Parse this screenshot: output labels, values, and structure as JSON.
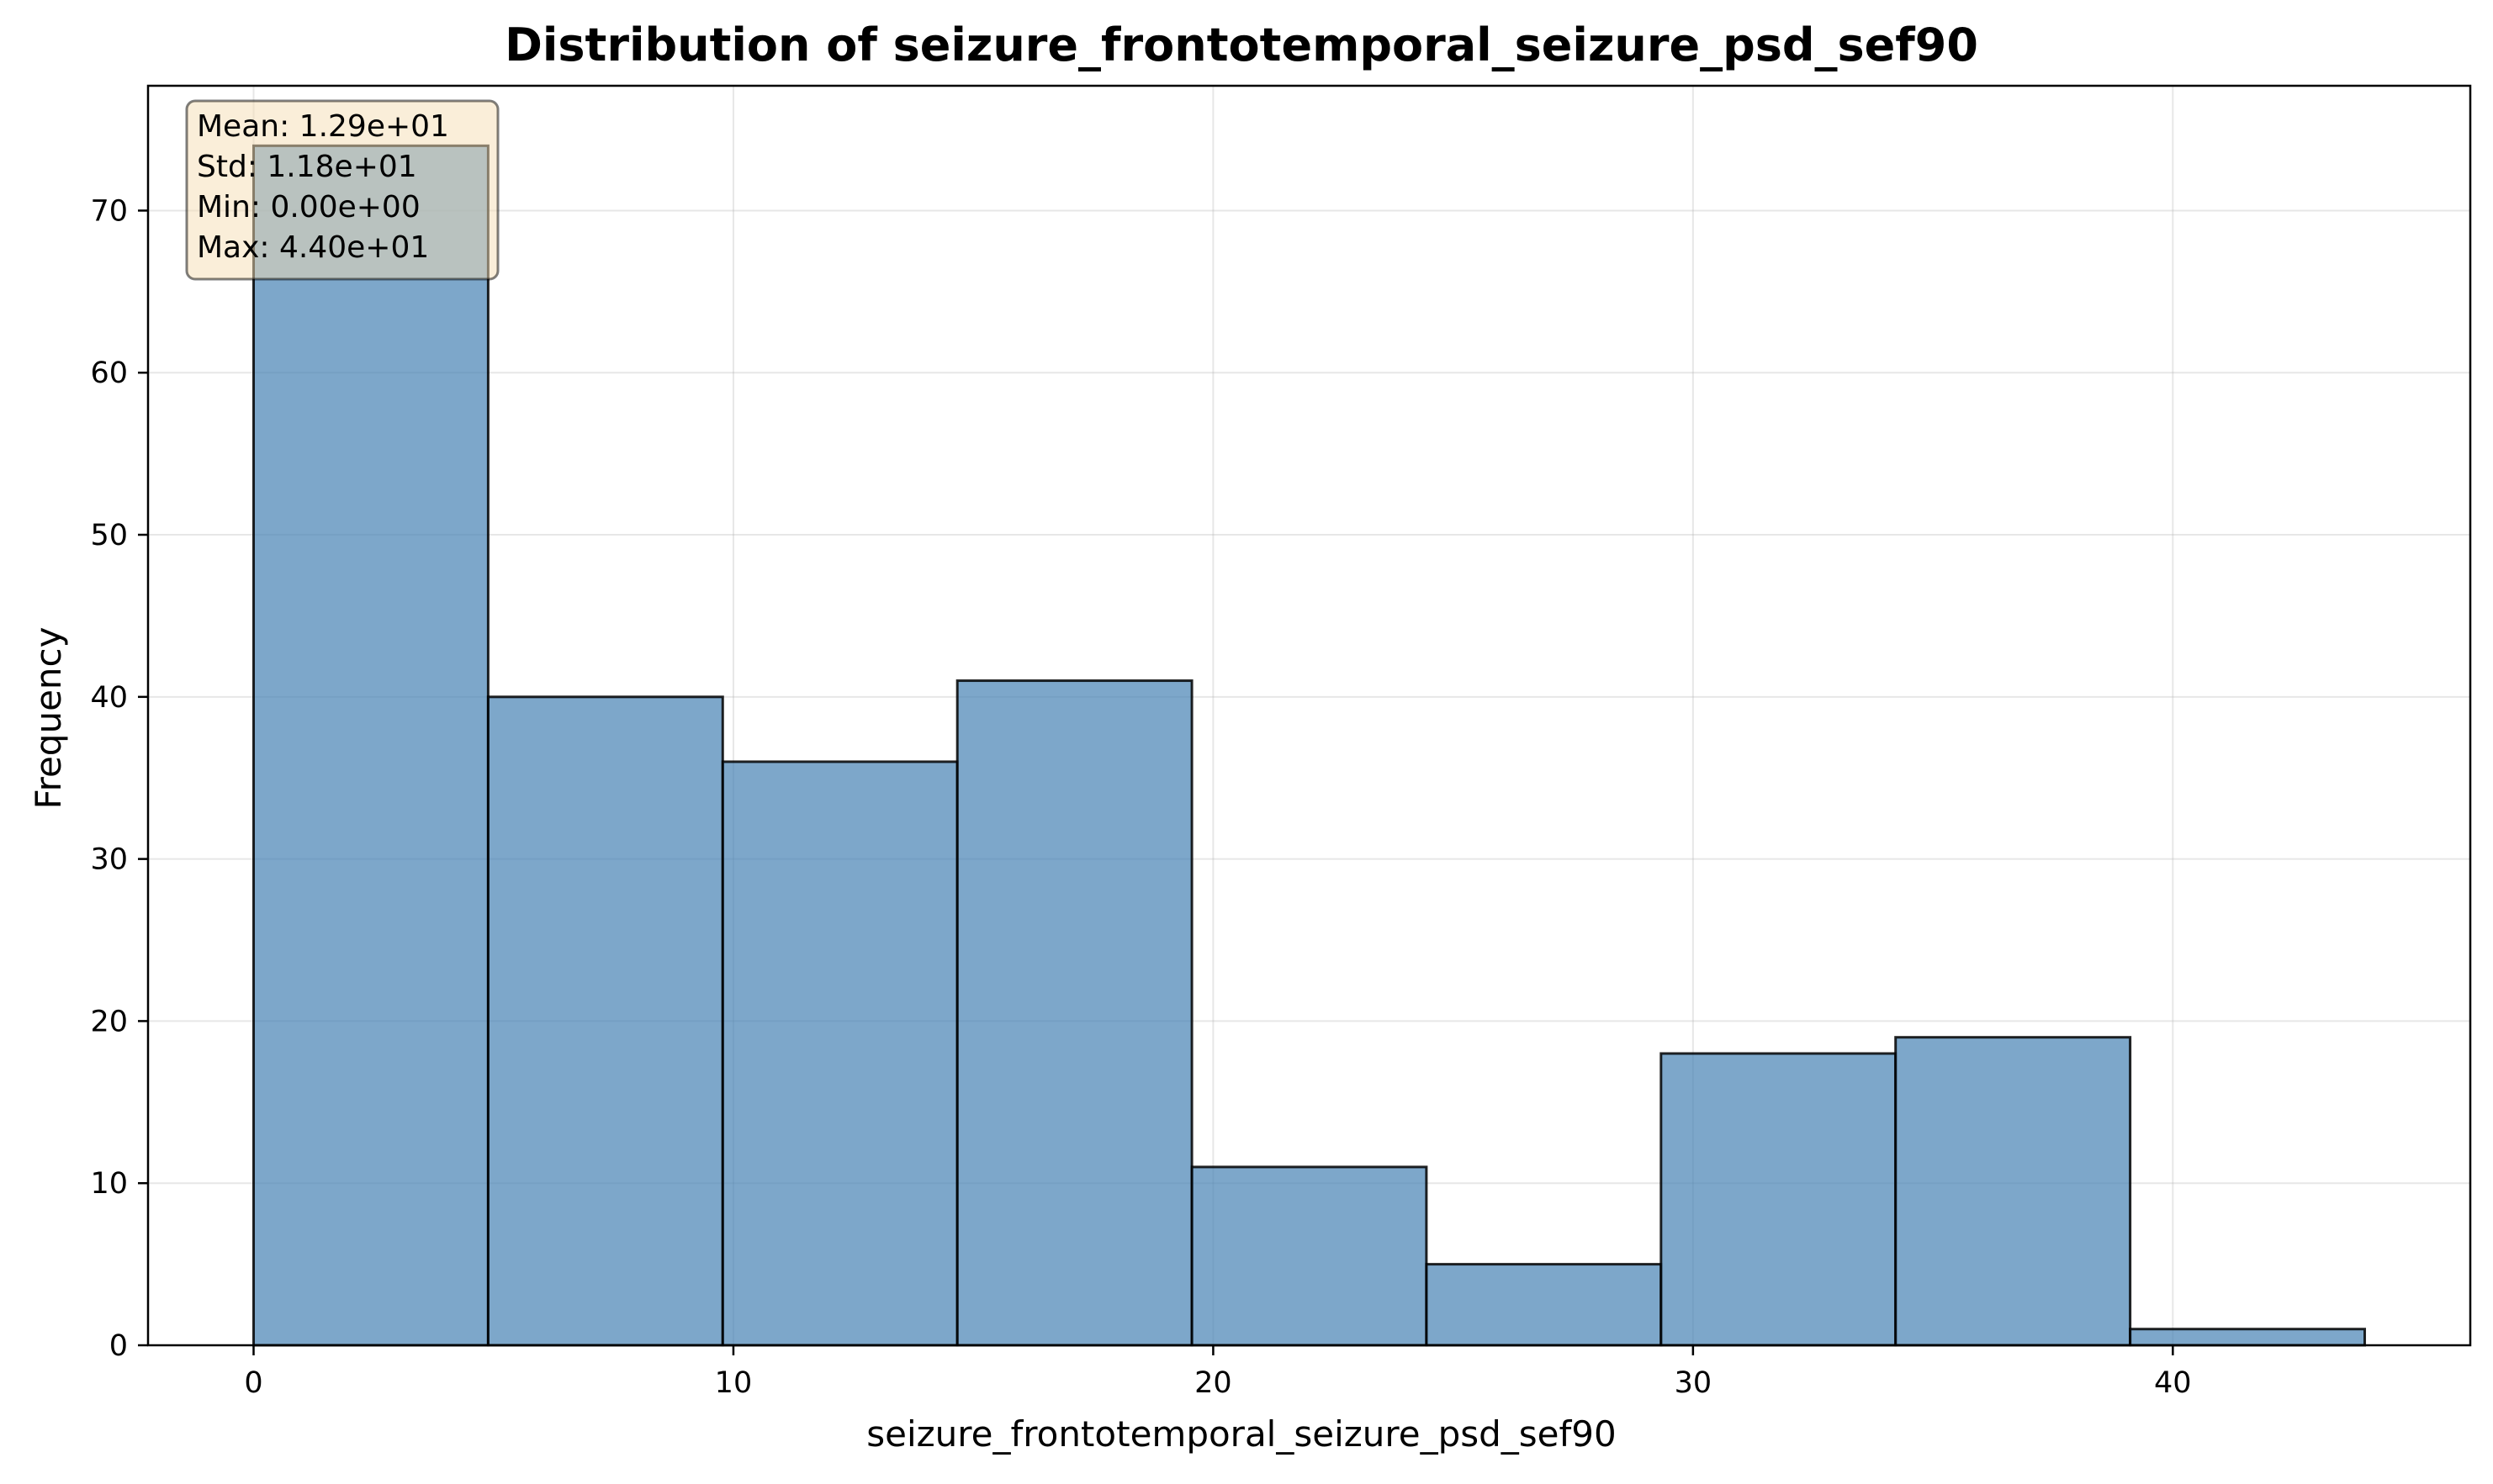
{
  "chart_data": {
    "type": "bar",
    "title": "Distribution of seizure_frontotemporal_seizure_psd_sef90",
    "xlabel": "seizure_frontotemporal_seizure_psd_sef90",
    "ylabel": "Frequency",
    "bin_edges": [
      0,
      4.889,
      9.778,
      14.667,
      19.556,
      24.444,
      29.333,
      34.222,
      39.111,
      44.0
    ],
    "values": [
      74,
      40,
      36,
      41,
      11,
      5,
      18,
      19,
      1
    ],
    "xlim": [
      -2.2,
      46.2
    ],
    "ylim": [
      0,
      77.7
    ],
    "xticks": [
      0,
      10,
      20,
      30,
      40
    ],
    "yticks": [
      0,
      10,
      20,
      30,
      40,
      50,
      60,
      70
    ],
    "grid": true,
    "bar_color": "#4682b4",
    "bar_edge_color": "#000000",
    "stats_box": {
      "lines": [
        "Mean: 1.29e+01",
        "Std: 1.18e+01",
        "Min: 0.00e+00",
        "Max: 4.40e+01"
      ],
      "placement": "top-left",
      "face_color": "#f5deb3",
      "edge_color": "#000000"
    }
  }
}
